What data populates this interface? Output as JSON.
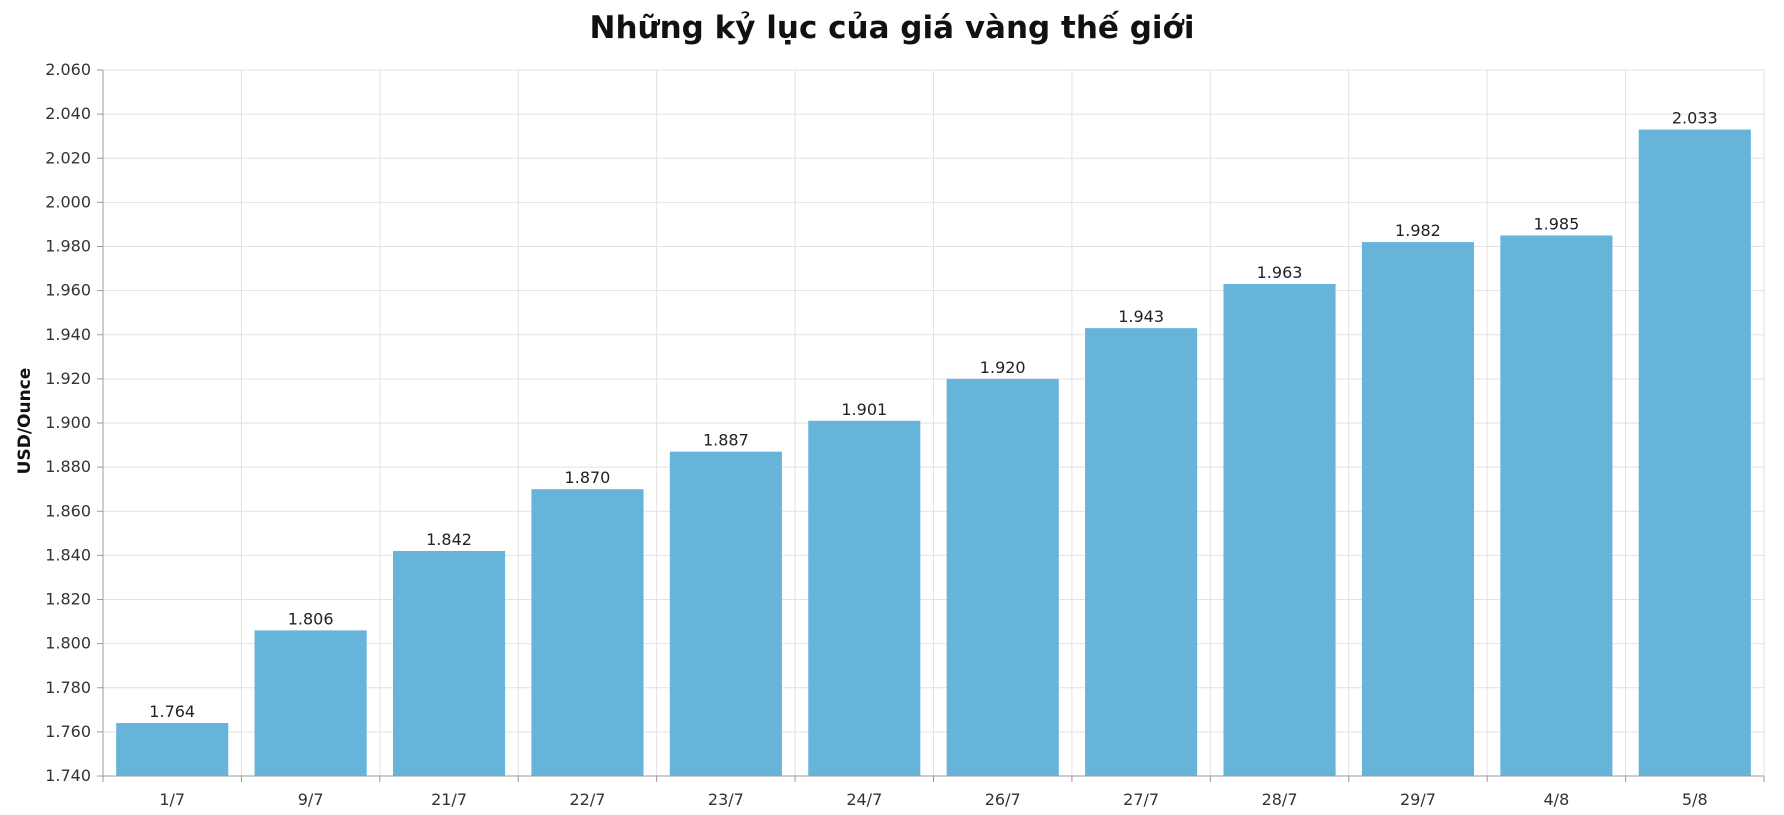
{
  "chart_data": {
    "type": "bar",
    "title": "Những kỷ lục của giá vàng thế giới",
    "xlabel": "",
    "ylabel": "USD/Ounce",
    "categories": [
      "1/7",
      "9/7",
      "21/7",
      "22/7",
      "23/7",
      "24/7",
      "26/7",
      "27/7",
      "28/7",
      "29/7",
      "4/8",
      "5/8"
    ],
    "values": [
      1764,
      1806,
      1842,
      1870,
      1887,
      1901,
      1920,
      1943,
      1963,
      1982,
      1985,
      2033
    ],
    "value_labels": [
      "1.764",
      "1.806",
      "1.842",
      "1.870",
      "1.887",
      "1.901",
      "1.920",
      "1.943",
      "1.963",
      "1.982",
      "1.985",
      "2.033"
    ],
    "ylim": [
      1740,
      2060
    ],
    "yticks": [
      1740,
      1760,
      1780,
      1800,
      1820,
      1840,
      1860,
      1880,
      1900,
      1920,
      1940,
      1960,
      1980,
      2000,
      2020,
      2040,
      2060
    ],
    "ytick_labels": [
      "1.740",
      "1.760",
      "1.780",
      "1.800",
      "1.820",
      "1.840",
      "1.860",
      "1.880",
      "1.900",
      "1.920",
      "1.940",
      "1.960",
      "1.980",
      "2.000",
      "2.020",
      "2.040",
      "2.060"
    ],
    "bar_color": "#67b4db",
    "grid": true,
    "legend": "none"
  }
}
